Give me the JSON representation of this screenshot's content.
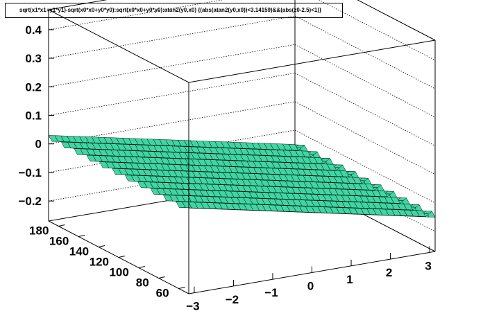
{
  "title": "sqrt(x1*x1+y1*y1)-sqrt(x0*x0+y0*y0):sqrt(x0*x0+y0*y0):atan2(y0,x0) {(abs(atan2(y0,x0))<3.14159)&&(abs(z0-2.5)<1)}",
  "colors": {
    "surface_fill": "#3fd6a3",
    "surface_line": "#000000",
    "frame": "#000000",
    "background": "#ffffff"
  },
  "chart_data": {
    "type": "surface",
    "title": "sqrt(x1*x1+y1*y1)-sqrt(x0*x0+y0*y0):sqrt(x0*x0+y0*y0):atan2(y0,x0) {(abs(atan2(y0,x0))<3.14159)&&(abs(z0-2.5)<1)}",
    "x_axis": {
      "range": [
        -3.14,
        3.14
      ],
      "ticks": [
        "−3",
        "−2",
        "−1",
        "0",
        "1",
        "2",
        "3"
      ]
    },
    "y_axis": {
      "range": [
        50,
        190
      ],
      "ticks": [
        "60",
        "80",
        "100",
        "120",
        "140",
        "160",
        "180"
      ]
    },
    "z_axis": {
      "range": [
        -0.27,
        0.47
      ],
      "ticks": [
        "−0.2",
        "−0.1",
        "0",
        "0.1",
        "0.2",
        "0.3",
        "0.4"
      ]
    },
    "surface": {
      "z_at_x_min": 0.03,
      "z_at_x_max": -0.15,
      "ripple_amplitude": 0.015,
      "ripple_count_along_y": 11
    },
    "grid": true
  }
}
